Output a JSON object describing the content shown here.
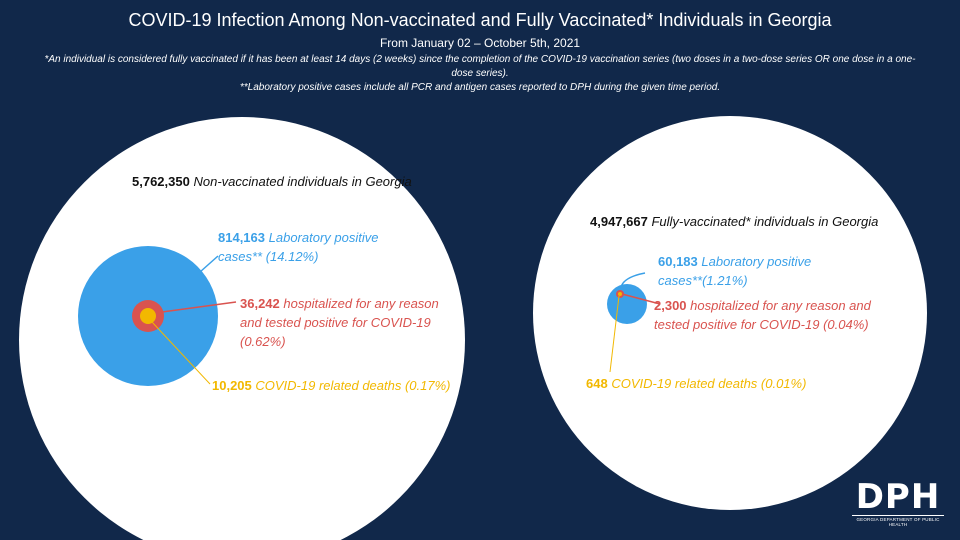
{
  "header": {
    "title": "COVID-19 Infection Among Non-vaccinated and Fully Vaccinated* Individuals in Georgia",
    "subtitle": "From January 02 – October 5th, 2021",
    "note1": "*An individual is considered fully vaccinated if it has been at least 14 days (2 weeks) since the completion of the COVID-19 vaccination series (two doses in a two-dose series OR one dose in a one-dose series).",
    "note2": "**Laboratory positive cases include all PCR and antigen cases reported to DPH during the given time period."
  },
  "chart_data": {
    "type": "nested-circle",
    "colors": {
      "population": "#ffffff",
      "cases": "#3aa0e8",
      "hospitalized": "#d9534f",
      "deaths": "#f2b800",
      "background": "#11284a"
    },
    "groups": [
      {
        "name": "Non-vaccinated",
        "population": {
          "value": 5762350,
          "value_text": "5,762,350",
          "label": "Non-vaccinated individuals in Georgia"
        },
        "cases": {
          "value": 814163,
          "value_text": "814,163",
          "label": "Laboratory positive cases** (14.12%)",
          "percent": 14.12
        },
        "hospitalized": {
          "value": 36242,
          "value_text": "36,242",
          "label": "hospitalized for any reason and tested positive for COVID-19 (0.62%)",
          "percent": 0.62
        },
        "deaths": {
          "value": 10205,
          "value_text": "10,205",
          "label": "COVID-19 related deaths (0.17%)",
          "percent": 0.17
        }
      },
      {
        "name": "Fully-vaccinated",
        "population": {
          "value": 4947667,
          "value_text": "4,947,667",
          "label": "Fully-vaccinated* individuals in Georgia"
        },
        "cases": {
          "value": 60183,
          "value_text": "60,183",
          "label": "Laboratory positive cases**(1.21%)",
          "percent": 1.21
        },
        "hospitalized": {
          "value": 2300,
          "value_text": "2,300",
          "label": "hospitalized for any reason and tested positive for COVID-19 (0.04%)",
          "percent": 0.04
        },
        "deaths": {
          "value": 648,
          "value_text": "648",
          "label": "COVID-19 related deaths (0.01%)",
          "percent": 0.01
        }
      }
    ]
  },
  "logo": {
    "mark": "DPH",
    "sub": "GEORGIA DEPARTMENT OF PUBLIC HEALTH"
  }
}
